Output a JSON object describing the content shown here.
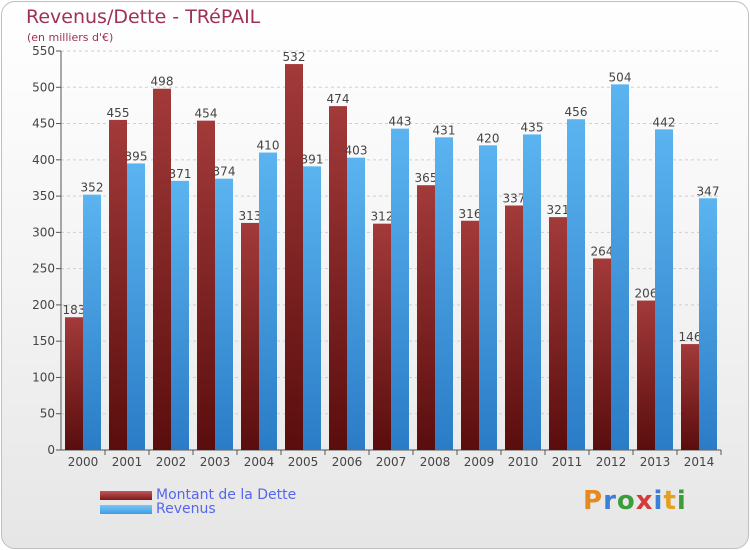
{
  "chart_data": {
    "type": "bar",
    "title": "Revenus/Dette - TRéPAIL",
    "subtitle": "(en milliers d'€)",
    "categories": [
      "2000",
      "2001",
      "2002",
      "2003",
      "2004",
      "2005",
      "2006",
      "2007",
      "2008",
      "2009",
      "2010",
      "2011",
      "2012",
      "2013",
      "2014"
    ],
    "series": [
      {
        "name": "Montant de la Dette",
        "color": "#7a1a1a",
        "values": [
          183,
          455,
          498,
          454,
          313,
          532,
          474,
          312,
          365,
          316,
          337,
          321,
          264,
          206,
          146
        ]
      },
      {
        "name": "Revenus",
        "color": "#3a9ee6",
        "values": [
          352,
          395,
          371,
          374,
          410,
          391,
          403,
          443,
          431,
          420,
          435,
          456,
          504,
          442,
          347
        ]
      }
    ],
    "yticks": [
      0,
      50,
      100,
      150,
      200,
      250,
      300,
      350,
      400,
      450,
      500,
      550
    ],
    "ylim": [
      0,
      550
    ],
    "grid": true,
    "legend_position": "bottom-left"
  },
  "logo": {
    "text": "Proxiti",
    "letters": [
      "P",
      "r",
      "o",
      "x",
      "i",
      "t",
      "i"
    ],
    "colors": [
      "#e58a1e",
      "#3b7fd6",
      "#3b9e3b",
      "#d63b3b",
      "#3b7fd6",
      "#e5a11e",
      "#3b9e3b"
    ]
  }
}
